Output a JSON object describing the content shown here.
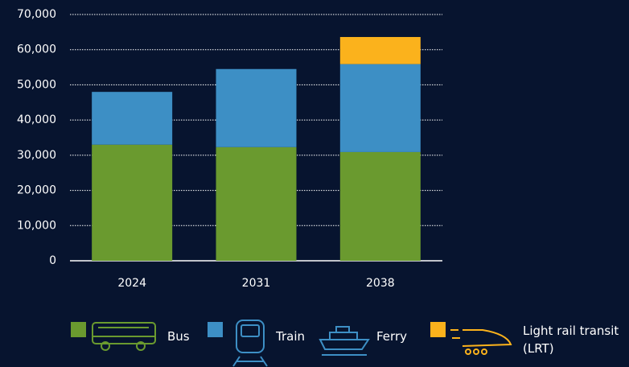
{
  "chart_data": {
    "type": "stacked-bar",
    "categories": [
      "2024",
      "2031",
      "2038"
    ],
    "series": [
      {
        "name": "Bus",
        "color": "#6a9a2f",
        "values": [
          33000,
          32300,
          30900
        ]
      },
      {
        "name": "Train",
        "color": "#3d8fc5",
        "values": [
          15000,
          22200,
          25000
        ]
      },
      {
        "name": "Ferry",
        "color": null,
        "values": [
          0,
          0,
          0
        ]
      },
      {
        "name": "Light rail transit (LRT)",
        "color": "#fbb21c",
        "values": [
          0,
          0,
          7700
        ]
      }
    ],
    "ylim": [
      0,
      70000
    ],
    "yticks": [
      0,
      {
        "value": 10000,
        "label": "10,000"
      },
      {
        "value": 20000,
        "label": "20,000"
      },
      {
        "value": 30000,
        "label": "30,000"
      },
      {
        "value": 40000,
        "label": "40,000"
      },
      {
        "value": 50000,
        "label": "50,000"
      },
      {
        "value": 60000,
        "label": "60,000"
      },
      {
        "value": 70000,
        "label": "70,000"
      }
    ],
    "grid": true
  }
}
